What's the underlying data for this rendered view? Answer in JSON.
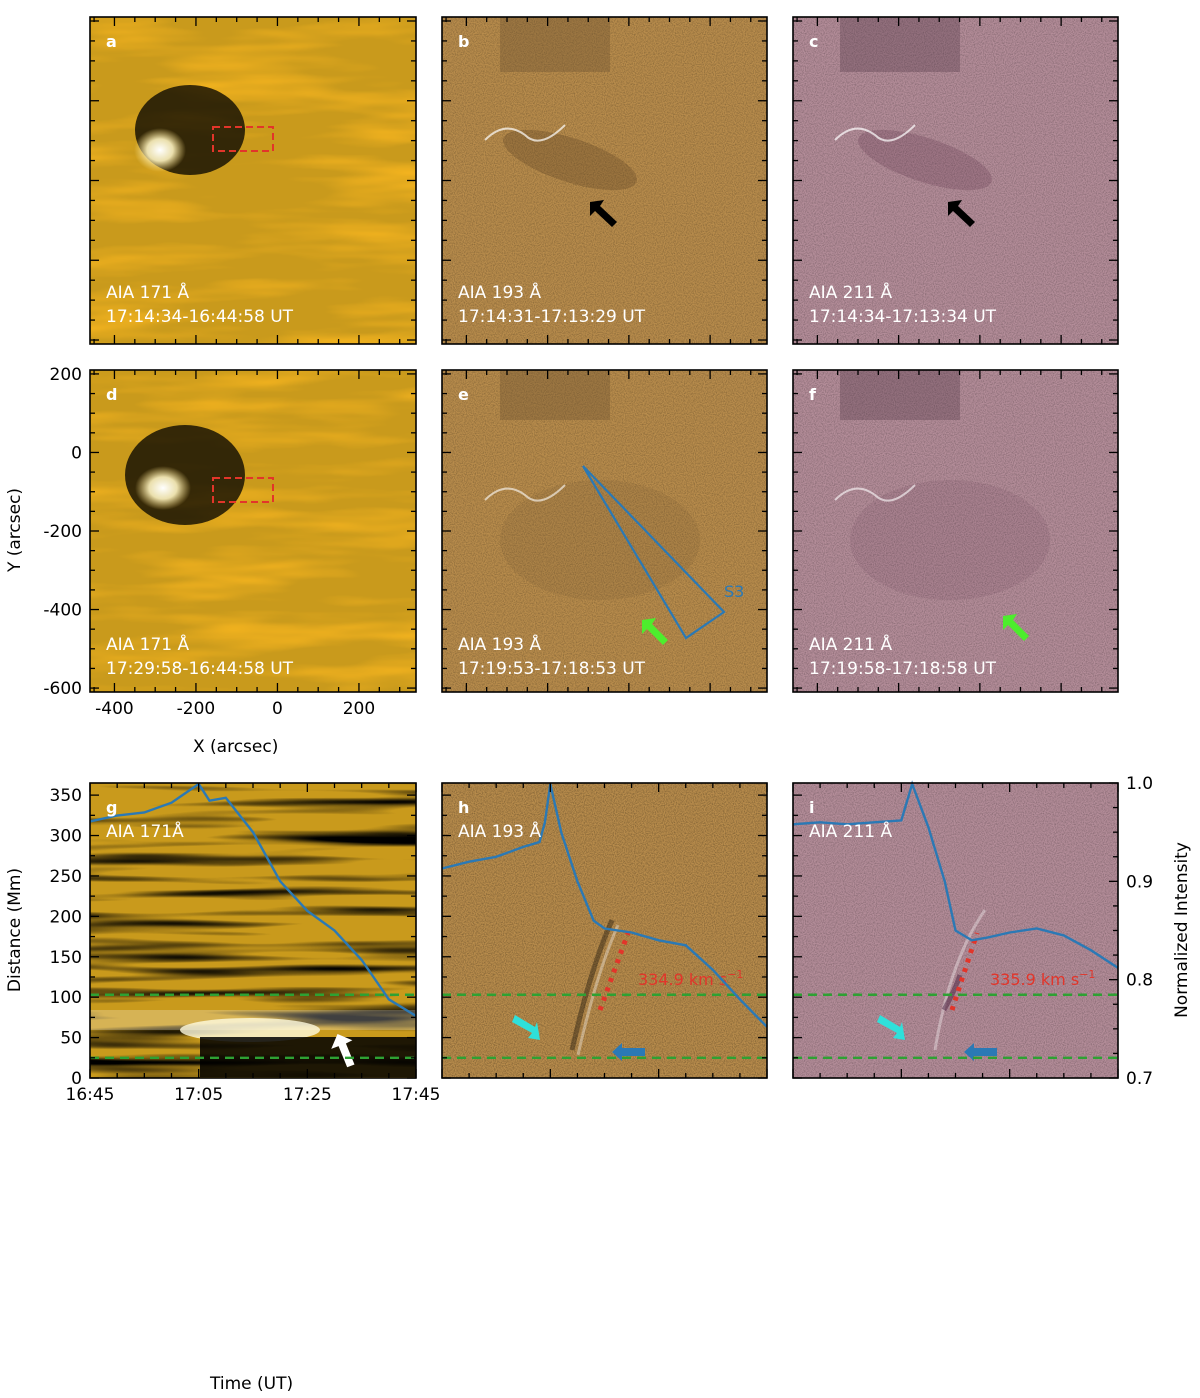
{
  "colors": {
    "aia171": "#c99a1c",
    "aia193": "#b88c4c",
    "aia211": "#b48d99",
    "curve": "#2b79b5",
    "red": "#e2352a",
    "green": "#2ea133",
    "lime": "#4ded2d",
    "cyan": "#2fe0da",
    "slit": "#2b79b5"
  },
  "panels_top": [
    {
      "letter": "a",
      "line1": "AIA 171 Å",
      "line2": "17:14:34-16:44:58 UT",
      "style": "171"
    },
    {
      "letter": "b",
      "line1": "AIA 193 Å",
      "line2": "17:14:31-17:13:29 UT",
      "style": "193"
    },
    {
      "letter": "c",
      "line1": "AIA 211 Å",
      "line2": "17:14:34-17:13:34 UT",
      "style": "211"
    },
    {
      "letter": "d",
      "line1": "AIA 171 Å",
      "line2": "17:29:58-16:44:58 UT",
      "style": "171"
    },
    {
      "letter": "e",
      "line1": "AIA 193 Å",
      "line2": "17:19:53-17:18:53 UT",
      "style": "193"
    },
    {
      "letter": "f",
      "line1": "AIA 211 Å",
      "line2": "17:19:58-17:18:58 UT",
      "style": "211"
    }
  ],
  "slit_label": "S3",
  "panels_bottom": [
    {
      "letter": "g",
      "line1": "AIA 171Å",
      "style": "171"
    },
    {
      "letter": "h",
      "line1": "AIA 193 Å",
      "style": "193",
      "speed_num": "334.9 km s",
      "speed_sup": "−1"
    },
    {
      "letter": "i",
      "line1": "AIA 211 Å",
      "style": "211",
      "speed_num": "335.9 km s",
      "speed_sup": "−1"
    }
  ],
  "axes": {
    "image_x": {
      "label": "X (arcsec)",
      "ticks": [
        "-400",
        "-200",
        "0",
        "200"
      ],
      "values": [
        -400,
        -200,
        0,
        200
      ],
      "range": [
        -460,
        340
      ]
    },
    "image_y": {
      "label": "Y (arcsec)",
      "ticks": [
        "200",
        "0",
        "-200",
        "-400",
        "-600"
      ],
      "values": [
        200,
        0,
        -200,
        -400,
        -600
      ],
      "range": [
        -610,
        210
      ]
    },
    "time": {
      "label": "Time (UT)",
      "ticks": [
        "16:45",
        "17:05",
        "17:25",
        "17:45"
      ],
      "values": [
        0,
        20,
        40,
        60
      ],
      "range": [
        0,
        60
      ]
    },
    "distance": {
      "label": "Distance (Mm)",
      "ticks": [
        "0",
        "50",
        "100",
        "150",
        "200",
        "250",
        "300",
        "350"
      ],
      "values": [
        0,
        50,
        100,
        150,
        200,
        250,
        300,
        350
      ],
      "range": [
        0,
        365
      ]
    },
    "intensity": {
      "label": "Normalized Intensity",
      "ticks": [
        "1.0",
        "0.9",
        "0.8",
        "0.7"
      ],
      "values": [
        1.0,
        0.9,
        0.8,
        0.7
      ],
      "range": [
        0.7,
        1.0
      ]
    }
  },
  "chart_data": {
    "type": "line",
    "xlabel": "Time (UT)",
    "ylabel": "Distance (Mm)",
    "ylabel_right": "Normalized Intensity",
    "x_unit": "minutes after 16:45 UT",
    "guide_lines_distance_Mm": [
      25,
      103
    ],
    "series": [
      {
        "panel": "g",
        "x": [
          0,
          5,
          10,
          15,
          20,
          22,
          25,
          30,
          35,
          40,
          45,
          50,
          55,
          60
        ],
        "y": [
          0.961,
          0.967,
          0.97,
          0.98,
          0.999,
          0.982,
          0.985,
          0.95,
          0.9,
          0.87,
          0.85,
          0.82,
          0.78,
          0.763
        ]
      },
      {
        "panel": "h",
        "x": [
          0,
          5,
          10,
          15,
          18,
          19,
          20,
          22,
          25,
          28,
          30,
          35,
          40,
          45,
          50,
          55,
          60
        ],
        "y": [
          0.913,
          0.92,
          0.925,
          0.935,
          0.94,
          0.96,
          0.999,
          0.95,
          0.9,
          0.86,
          0.852,
          0.848,
          0.84,
          0.835,
          0.81,
          0.78,
          0.752
        ]
      },
      {
        "panel": "i",
        "x": [
          0,
          5,
          10,
          15,
          20,
          22,
          25,
          28,
          30,
          33,
          36,
          40,
          45,
          50,
          55,
          60
        ],
        "y": [
          0.958,
          0.96,
          0.958,
          0.96,
          0.962,
          0.999,
          0.955,
          0.9,
          0.85,
          0.84,
          0.843,
          0.848,
          0.852,
          0.845,
          0.83,
          0.812
        ]
      }
    ],
    "speed_fits": [
      {
        "panel": "h",
        "label": "334.9 km s−1"
      },
      {
        "panel": "i",
        "label": "335.9 km s−1"
      }
    ]
  }
}
